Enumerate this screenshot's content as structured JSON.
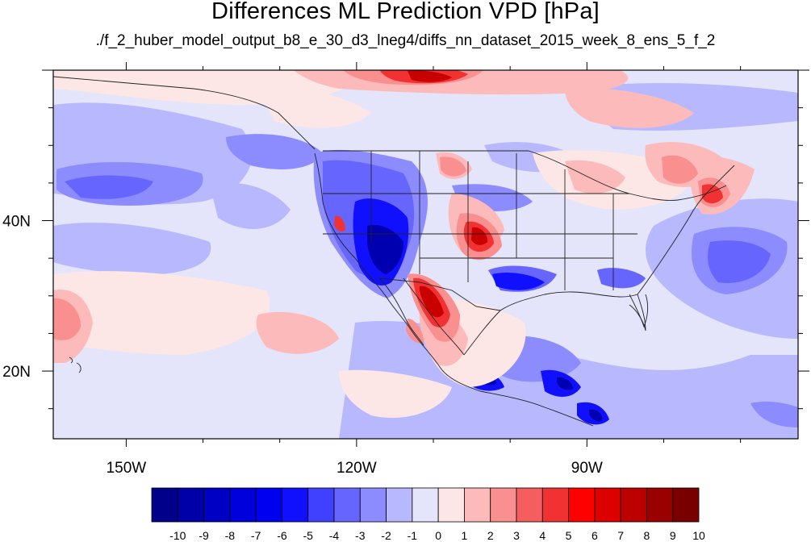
{
  "title": "Differences ML Prediction VPD [hPa]",
  "subtitle": "./f_2_huber_model_output_b8_e_30_d3_lneg4/diffs_nn_dataset_2015_week_8_ens_5_f_2",
  "map": {
    "lon_range": [
      -159.5,
      -62.5
    ],
    "lat_range": [
      11,
      60
    ],
    "x_ticks": [
      {
        "lon": -150,
        "label": "150W"
      },
      {
        "lon": -120,
        "label": "120W"
      },
      {
        "lon": -90,
        "label": "90W"
      }
    ],
    "y_ticks": [
      {
        "lat": 40,
        "label": "40N"
      },
      {
        "lat": 20,
        "label": "20N"
      }
    ]
  },
  "colorbar": {
    "labels": [
      "-10",
      "-9",
      "-8",
      "-7",
      "-6",
      "-5",
      "-4",
      "-3",
      "-2",
      "-1",
      "0",
      "1",
      "2",
      "3",
      "4",
      "5",
      "6",
      "7",
      "8",
      "9",
      "10"
    ],
    "colors": [
      "#00008a",
      "#0000a8",
      "#0000c4",
      "#0000dc",
      "#0000f0",
      "#1010ff",
      "#4040ff",
      "#6666ff",
      "#8c8cff",
      "#b8b8ff",
      "#e4e4fa",
      "#fde6e6",
      "#fcbaba",
      "#f98f8f",
      "#f55e5e",
      "#f23232",
      "#ff0000",
      "#dc0000",
      "#bc0000",
      "#9a0000",
      "#7a0000"
    ]
  }
}
